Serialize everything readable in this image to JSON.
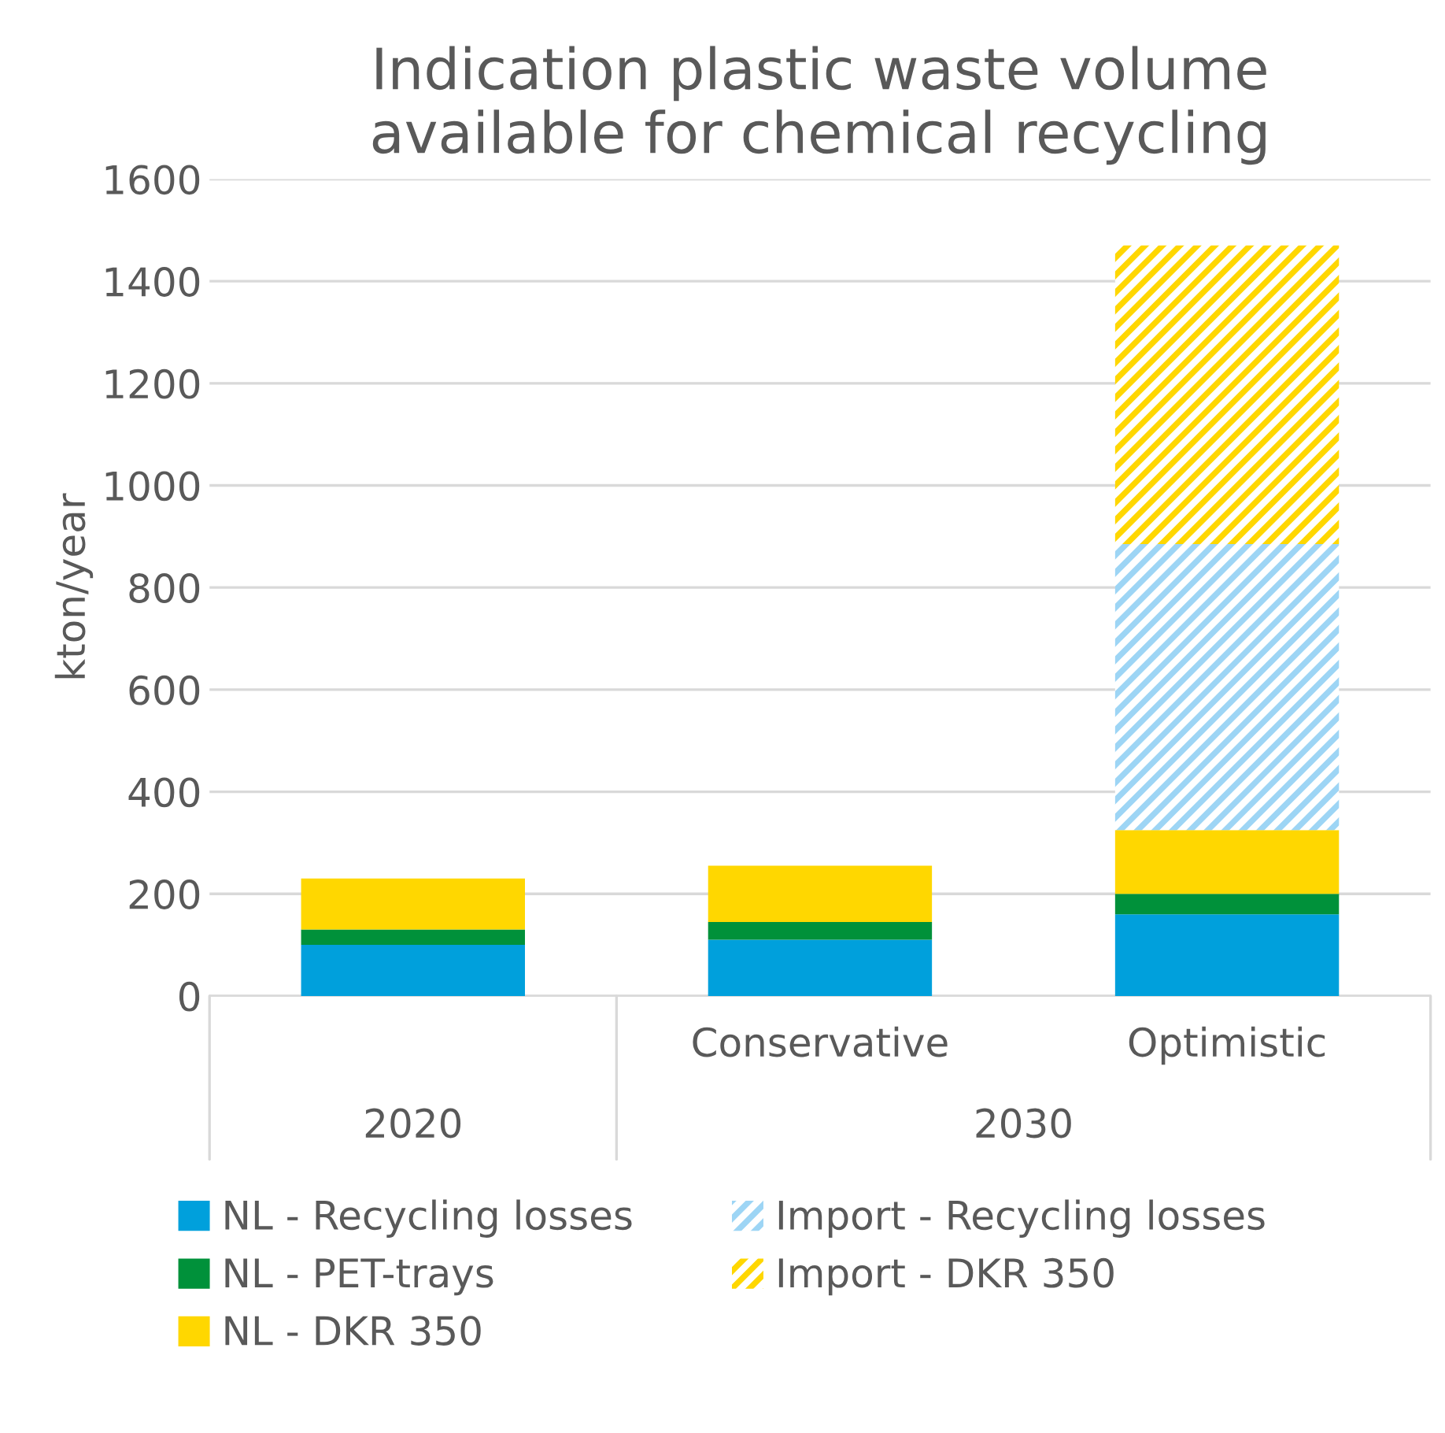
{
  "chart_data": {
    "type": "bar",
    "title": "Indication plastic waste volume\navailable for chemical recycling",
    "ylabel": "kton/year",
    "categories": [
      null,
      "Conservative",
      "Optimistic"
    ],
    "annotations": [
      "2020",
      "2030"
    ],
    "stacked": true,
    "series": [
      {
        "name": "NL - Recycling losses",
        "color": "#00a0dc",
        "values": [
          100,
          110,
          160
        ]
      },
      {
        "name": "NL - PET-trays",
        "color": "#00913a",
        "values": [
          30,
          35,
          40
        ]
      },
      {
        "name": "NL - DKR 350",
        "color": "#ffd700",
        "values": [
          100,
          110,
          125
        ]
      },
      {
        "name": "Import - Recycling losses",
        "color": "#9dd5f5",
        "values": [
          null,
          null,
          560
        ]
      },
      {
        "name": "Import - DKR 350",
        "color": "#ffd700",
        "values": [
          null,
          null,
          585
        ]
      }
    ],
    "ylim": [
      0,
      1600
    ],
    "yticks": [
      0,
      200,
      400,
      600,
      800,
      1000,
      1200,
      1400,
      1600
    ],
    "grid": "y",
    "legend": "bottom"
  }
}
